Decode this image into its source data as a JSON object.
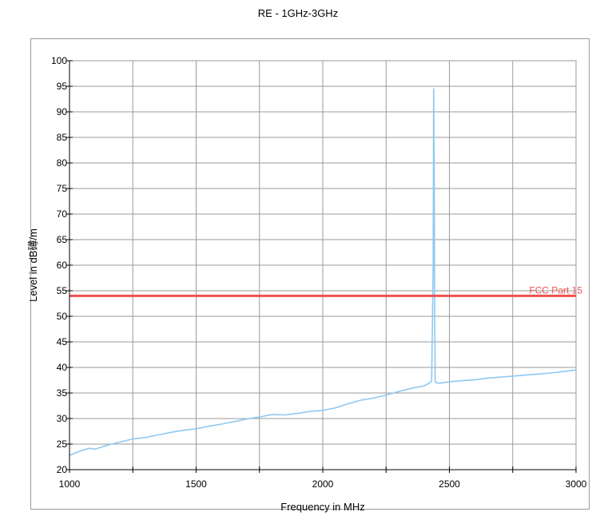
{
  "page": {
    "title": "RE - 1GHz-3GHz"
  },
  "chart_data": {
    "type": "line",
    "title": "RE - 1GHz-3GHz",
    "xlabel": "Frequency in MHz",
    "ylabel": "Level in dB礡/m",
    "xlim": [
      1000,
      3000
    ],
    "ylim": [
      20,
      100
    ],
    "x_ticks": [
      1000,
      1500,
      2000,
      2500,
      3000
    ],
    "x_minor_step": 250,
    "y_ticks": [
      20,
      25,
      30,
      35,
      40,
      45,
      50,
      55,
      60,
      65,
      70,
      75,
      80,
      85,
      90,
      95,
      100
    ],
    "grid": true,
    "series": [
      {
        "name": "",
        "color": "#8fc8f0",
        "x": [
          1000,
          1020,
          1050,
          1080,
          1100,
          1150,
          1200,
          1250,
          1300,
          1350,
          1400,
          1450,
          1500,
          1550,
          1600,
          1650,
          1700,
          1750,
          1800,
          1850,
          1900,
          1950,
          2000,
          2050,
          2100,
          2150,
          2200,
          2250,
          2300,
          2350,
          2400,
          2420,
          2430,
          2436,
          2438,
          2440,
          2442,
          2444,
          2450,
          2460,
          2500,
          2550,
          2600,
          2650,
          2700,
          2750,
          2800,
          2850,
          2900,
          2950,
          3000
        ],
        "y": [
          22.8,
          23.2,
          23.8,
          24.2,
          24.0,
          24.8,
          25.4,
          26.0,
          26.3,
          26.8,
          27.3,
          27.7,
          28.0,
          28.5,
          28.9,
          29.4,
          29.9,
          30.3,
          30.8,
          30.7,
          31.0,
          31.4,
          31.6,
          32.1,
          32.9,
          33.6,
          34.0,
          34.6,
          35.3,
          35.9,
          36.4,
          36.9,
          37.3,
          60.0,
          94.5,
          80.0,
          50.0,
          37.2,
          37.0,
          36.9,
          37.2,
          37.4,
          37.6,
          37.9,
          38.1,
          38.3,
          38.5,
          38.7,
          38.9,
          39.2,
          39.5
        ]
      }
    ],
    "limit_line": {
      "label": "FCC Part 15",
      "value": 54,
      "color": "#f05050"
    }
  }
}
